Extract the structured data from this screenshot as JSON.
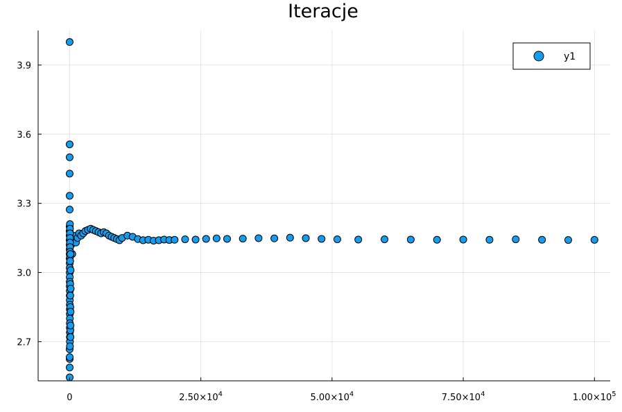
{
  "chart_data": {
    "type": "scatter",
    "title": "Iteracje",
    "xlabel": "",
    "ylabel": "",
    "xlim": [
      -6000,
      103000
    ],
    "ylim": [
      2.53,
      4.05
    ],
    "grid": true,
    "legend_position": "top-right",
    "x_ticks": [
      {
        "value": 0,
        "mantissa": "0",
        "exp": ""
      },
      {
        "value": 25000,
        "mantissa": "2.50×10",
        "exp": "4"
      },
      {
        "value": 50000,
        "mantissa": "5.00×10",
        "exp": "4"
      },
      {
        "value": 75000,
        "mantissa": "7.50×10",
        "exp": "4"
      },
      {
        "value": 100000,
        "mantissa": "1.00×10",
        "exp": "5"
      }
    ],
    "y_ticks": [
      {
        "value": 2.7,
        "label": "2.7"
      },
      {
        "value": 3.0,
        "label": "3.0"
      },
      {
        "value": 3.3,
        "label": "3.3"
      },
      {
        "value": 3.6,
        "label": "3.6"
      },
      {
        "value": 3.9,
        "label": "3.9"
      }
    ],
    "series": [
      {
        "name": "y1",
        "color": "#179bec",
        "marker_stroke": "#000000",
        "early_points": [
          [
            1,
            4.0
          ],
          [
            2,
            2.667
          ],
          [
            3,
            3.556
          ],
          [
            4,
            3.5
          ],
          [
            5,
            3.429
          ],
          [
            6,
            3.333
          ],
          [
            7,
            3.273
          ],
          [
            8,
            2.545
          ],
          [
            9,
            2.588
          ],
          [
            10,
            2.625
          ],
          [
            11,
            2.633
          ],
          [
            12,
            3.2
          ],
          [
            13,
            3.18
          ],
          [
            14,
            3.16
          ],
          [
            15,
            3.14
          ],
          [
            16,
            3.12
          ],
          [
            17,
            3.1
          ],
          [
            18,
            3.08
          ],
          [
            19,
            3.06
          ],
          [
            20,
            3.04
          ],
          [
            22,
            3.02
          ],
          [
            24,
            3.0
          ],
          [
            26,
            2.98
          ],
          [
            28,
            2.96
          ],
          [
            30,
            2.94
          ],
          [
            32,
            2.92
          ],
          [
            34,
            2.9
          ],
          [
            36,
            2.88
          ],
          [
            38,
            2.86
          ],
          [
            40,
            2.84
          ],
          [
            42,
            2.82
          ],
          [
            44,
            2.8
          ],
          [
            46,
            2.78
          ],
          [
            48,
            2.76
          ],
          [
            50,
            2.74
          ],
          [
            52,
            2.72
          ],
          [
            54,
            2.7
          ],
          [
            56,
            2.68
          ],
          [
            60,
            3.21
          ],
          [
            65,
            3.19
          ],
          [
            70,
            3.17
          ],
          [
            75,
            3.15
          ],
          [
            80,
            3.13
          ],
          [
            85,
            3.11
          ],
          [
            90,
            3.09
          ],
          [
            95,
            3.07
          ],
          [
            100,
            3.05
          ],
          [
            110,
            2.95
          ],
          [
            120,
            2.9
          ],
          [
            130,
            2.85
          ],
          [
            140,
            2.75
          ],
          [
            150,
            3.08
          ],
          [
            160,
            2.72
          ],
          [
            170,
            2.77
          ],
          [
            180,
            2.83
          ],
          [
            190,
            3.01
          ],
          [
            200,
            2.93
          ]
        ],
        "converging_points": [
          [
            300,
            3.12
          ],
          [
            500,
            3.08
          ],
          [
            700,
            3.16
          ],
          [
            900,
            3.14
          ],
          [
            1200,
            3.13
          ],
          [
            1500,
            3.15
          ],
          [
            1800,
            3.17
          ],
          [
            2200,
            3.16
          ],
          [
            2600,
            3.17
          ],
          [
            3000,
            3.18
          ],
          [
            3500,
            3.185
          ],
          [
            4000,
            3.19
          ],
          [
            4500,
            3.185
          ],
          [
            5000,
            3.18
          ],
          [
            5500,
            3.175
          ],
          [
            6000,
            3.17
          ],
          [
            6500,
            3.175
          ],
          [
            7000,
            3.17
          ],
          [
            7500,
            3.16
          ],
          [
            8000,
            3.155
          ],
          [
            8500,
            3.15
          ],
          [
            9000,
            3.145
          ],
          [
            9500,
            3.14
          ],
          [
            10000,
            3.15
          ],
          [
            11000,
            3.16
          ],
          [
            12000,
            3.155
          ],
          [
            13000,
            3.145
          ],
          [
            14000,
            3.14
          ],
          [
            15000,
            3.142
          ],
          [
            16000,
            3.138
          ],
          [
            17000,
            3.14
          ],
          [
            18000,
            3.143
          ],
          [
            19000,
            3.141
          ],
          [
            20000,
            3.142
          ],
          [
            22000,
            3.144
          ],
          [
            24000,
            3.143
          ],
          [
            26000,
            3.146
          ],
          [
            28000,
            3.148
          ],
          [
            30000,
            3.146
          ],
          [
            33000,
            3.147
          ],
          [
            36000,
            3.149
          ],
          [
            39000,
            3.148
          ],
          [
            42000,
            3.151
          ],
          [
            45000,
            3.149
          ],
          [
            48000,
            3.146
          ],
          [
            51000,
            3.144
          ],
          [
            55000,
            3.143
          ],
          [
            60000,
            3.144
          ],
          [
            65000,
            3.143
          ],
          [
            70000,
            3.142
          ],
          [
            75000,
            3.143
          ],
          [
            80000,
            3.142
          ],
          [
            85000,
            3.144
          ],
          [
            90000,
            3.142
          ],
          [
            95000,
            3.141
          ],
          [
            100000,
            3.1418
          ]
        ]
      }
    ]
  }
}
